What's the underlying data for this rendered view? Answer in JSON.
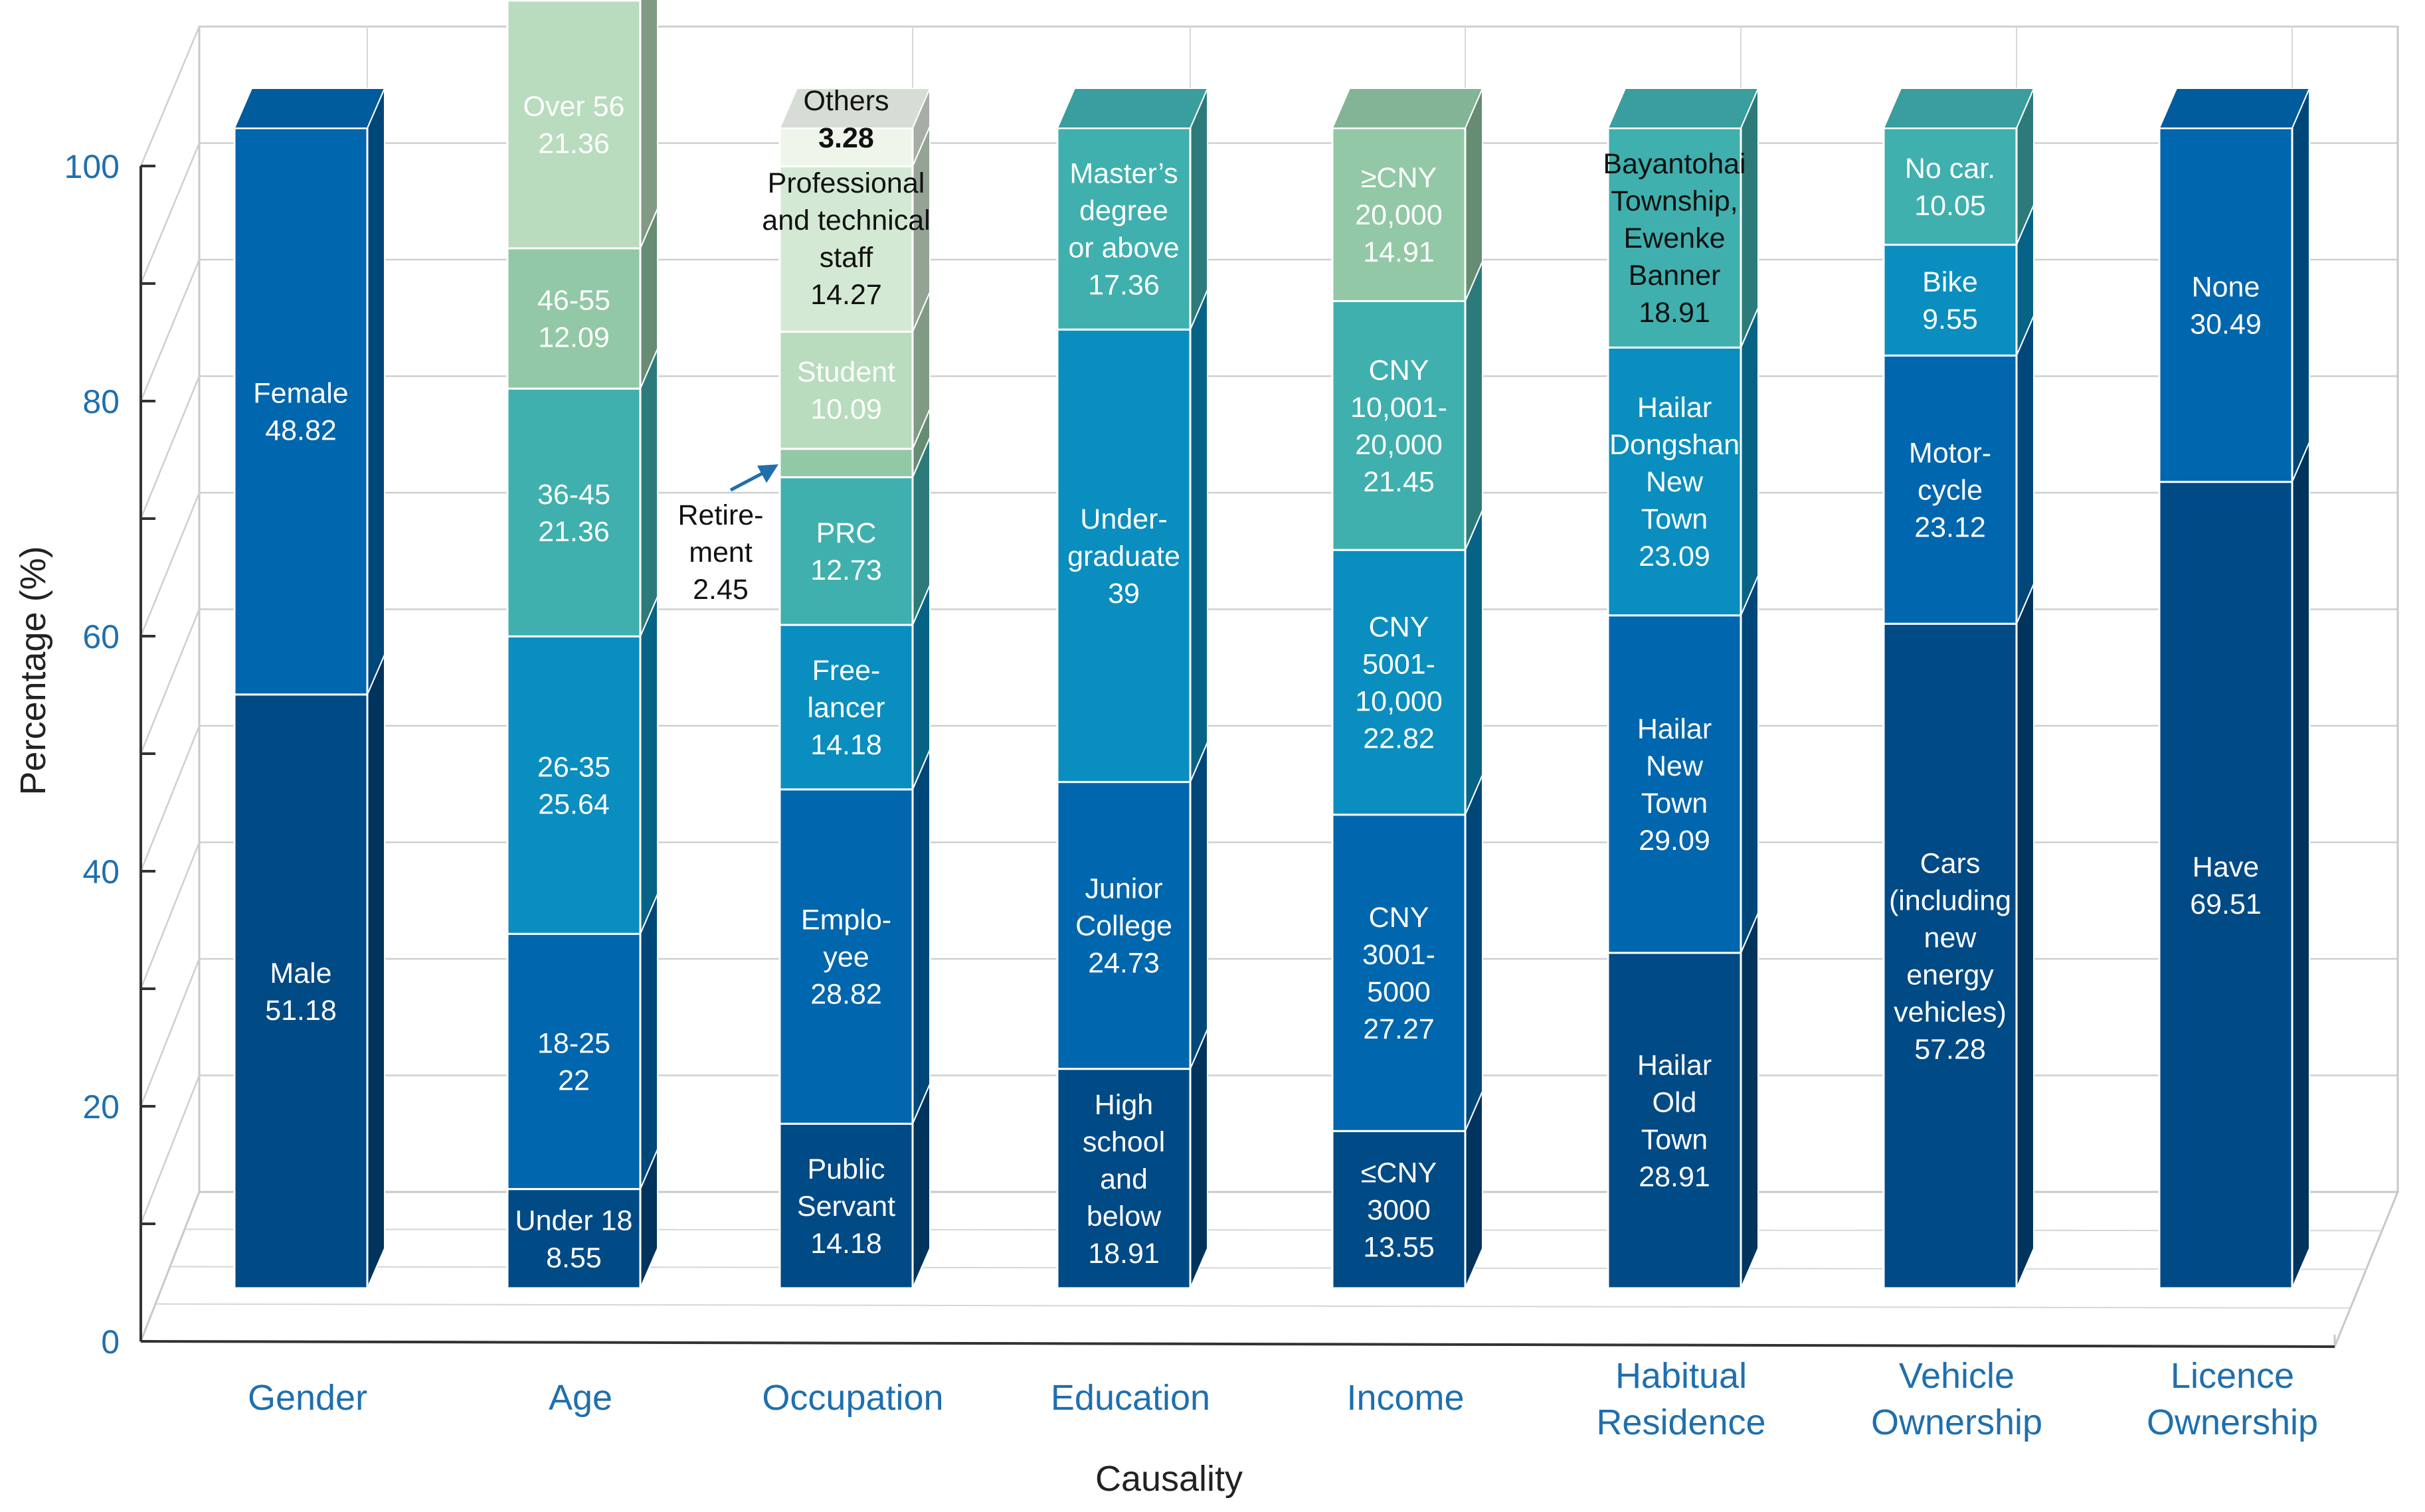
{
  "chart_data": {
    "type": "bar",
    "stacked": true,
    "style": "3d",
    "title": "",
    "xlabel": "Causality",
    "ylabel": "Percentage (%)",
    "ylim": [
      0,
      100
    ],
    "yticks": [
      "0",
      "20",
      "40",
      "60",
      "80",
      "100"
    ],
    "grid": true,
    "categories": [
      {
        "name": "Gender",
        "label_lines": [
          "Gender"
        ],
        "segments": [
          {
            "label": "Male",
            "value": 51.18,
            "color": "#004a85",
            "lines": [
              "Male",
              "51.18"
            ]
          },
          {
            "label": "Female",
            "value": 48.82,
            "color": "#0066ad",
            "lines": [
              "Female",
              "48.82"
            ]
          }
        ]
      },
      {
        "name": "Age",
        "label_lines": [
          "Age"
        ],
        "segments": [
          {
            "label": "Under 18",
            "value": 8.55,
            "color": "#004a85",
            "lines": [
              "Under 18",
              "8.55"
            ]
          },
          {
            "label": "18-25",
            "value": 22,
            "color": "#0066ad",
            "lines": [
              "18-25",
              "22"
            ]
          },
          {
            "label": "26-35",
            "value": 25.64,
            "color": "#0a8ebf",
            "lines": [
              "26-35",
              "25.64"
            ]
          },
          {
            "label": "36-45",
            "value": 21.36,
            "color": "#3fb0ae",
            "lines": [
              "36-45",
              "21.36"
            ]
          },
          {
            "label": "46-55",
            "value": 12.09,
            "color": "#92c8a6",
            "lines": [
              "46-55",
              "12.09"
            ]
          },
          {
            "label": "Over 56",
            "value": 21.36,
            "color": "#b8dcbd",
            "lines": [
              "Over 56",
              "21.36"
            ]
          }
        ]
      },
      {
        "name": "Occupation",
        "label_lines": [
          "Occupation"
        ],
        "segments": [
          {
            "label": "Public Servant",
            "value": 14.18,
            "color": "#004a85",
            "lines": [
              "Public",
              "Servant",
              "14.18"
            ]
          },
          {
            "label": "Employee",
            "value": 28.82,
            "color": "#0066ad",
            "lines": [
              "Emplo-",
              "yee",
              "28.82"
            ]
          },
          {
            "label": "Freelancer",
            "value": 14.18,
            "color": "#0a8ebf",
            "lines": [
              "Free-",
              "lancer",
              "14.18"
            ]
          },
          {
            "label": "PRC",
            "value": 12.73,
            "color": "#3fb0ae",
            "lines": [
              "PRC",
              "12.73"
            ]
          },
          {
            "label": "Retirement",
            "value": 2.45,
            "color": "#92c8a6",
            "lines": []
          },
          {
            "label": "Student",
            "value": 10.09,
            "color": "#b8dcbd",
            "lines": [
              "Student",
              "10.09"
            ]
          },
          {
            "label": "Professional and technical staff",
            "value": 14.27,
            "color": "#d4e9d3",
            "lines": []
          },
          {
            "label": "Others",
            "value": 3.28,
            "color": "#eef6ec",
            "lines": []
          }
        ],
        "callouts": {
          "retirement": [
            "Retire-",
            "ment",
            "2.45"
          ],
          "professional": [
            "Professional",
            "and technical",
            "staff",
            "14.27"
          ],
          "others": [
            "Others",
            "3.28"
          ]
        }
      },
      {
        "name": "Education",
        "label_lines": [
          "Education"
        ],
        "segments": [
          {
            "label": "High school and below",
            "value": 18.91,
            "color": "#004a85",
            "lines": [
              "High",
              "school",
              "and",
              "below",
              "18.91"
            ]
          },
          {
            "label": "Junior College",
            "value": 24.73,
            "color": "#0066ad",
            "lines": [
              "Junior",
              "College",
              "24.73"
            ]
          },
          {
            "label": "Undergraduate",
            "value": 39,
            "color": "#0a8ebf",
            "lines": [
              "Under-",
              "graduate",
              "39"
            ]
          },
          {
            "label": "Master's degree or above",
            "value": 17.36,
            "color": "#3fb0ae",
            "lines": [
              "Master’s",
              "degree",
              "or above",
              "17.36"
            ]
          }
        ]
      },
      {
        "name": "Income",
        "label_lines": [
          "Income"
        ],
        "segments": [
          {
            "label": "≤CNY 3000",
            "value": 13.55,
            "color": "#004a85",
            "lines": [
              "≤CNY",
              "3000",
              "13.55"
            ]
          },
          {
            "label": "CNY 3001-5000",
            "value": 27.27,
            "color": "#0066ad",
            "lines": [
              "CNY",
              "3001-",
              "5000",
              "27.27"
            ]
          },
          {
            "label": "CNY 5001-10,000",
            "value": 22.82,
            "color": "#0a8ebf",
            "lines": [
              "CNY",
              "5001-",
              "10,000",
              "22.82"
            ]
          },
          {
            "label": "CNY 10,001-20,000",
            "value": 21.45,
            "color": "#3fb0ae",
            "lines": [
              "CNY",
              "10,001-",
              "20,000",
              "21.45"
            ]
          },
          {
            "label": "≥CNY 20,000",
            "value": 14.91,
            "color": "#92c8a6",
            "lines": [
              "≥CNY",
              "20,000",
              "14.91"
            ]
          }
        ]
      },
      {
        "name": "Habitual Residence",
        "label_lines": [
          "Habitual",
          "Residence"
        ],
        "segments": [
          {
            "label": "Hailar Old Town",
            "value": 28.91,
            "color": "#004a85",
            "lines": [
              "Hailar",
              "Old",
              "Town",
              "28.91"
            ]
          },
          {
            "label": "Hailar New Town",
            "value": 29.09,
            "color": "#0066ad",
            "lines": [
              "Hailar",
              "New",
              "Town",
              "29.09"
            ]
          },
          {
            "label": "Hailar Dongshan New Town",
            "value": 23.09,
            "color": "#0a8ebf",
            "lines": [
              "Hailar",
              "Dongshan",
              "New",
              "Town",
              "23.09"
            ]
          },
          {
            "label": "Bayantohai Township, Ewenke Banner",
            "value": 18.91,
            "color": "#3fb0ae",
            "lines": [
              "Bayantohai",
              "Township,",
              "Ewenke",
              "Banner",
              "18.91"
            ],
            "dark": true
          }
        ]
      },
      {
        "name": "Vehicle Ownership",
        "label_lines": [
          "Vehicle",
          "Ownership"
        ],
        "segments": [
          {
            "label": "Cars (including new energy vehicles)",
            "value": 57.28,
            "color": "#004a85",
            "lines": [
              "Cars",
              "(including",
              "new",
              "energy",
              "vehicles)",
              "57.28"
            ]
          },
          {
            "label": "Motorcycle",
            "value": 23.12,
            "color": "#0066ad",
            "lines": [
              "Motor-",
              "cycle",
              "23.12"
            ]
          },
          {
            "label": "Bike",
            "value": 9.55,
            "color": "#0a8ebf",
            "lines": [
              "Bike",
              "9.55"
            ]
          },
          {
            "label": "No car.",
            "value": 10.05,
            "color": "#3fb0ae",
            "lines": [
              "No car.",
              "10.05"
            ]
          }
        ]
      },
      {
        "name": "Licence Ownership",
        "label_lines": [
          "Licence",
          "Ownership"
        ],
        "segments": [
          {
            "label": "Have",
            "value": 69.51,
            "color": "#004a85",
            "lines": [
              "Have",
              "69.51"
            ]
          },
          {
            "label": "None",
            "value": 30.49,
            "color": "#0066ad",
            "lines": [
              "None",
              "30.49"
            ]
          }
        ]
      }
    ]
  }
}
